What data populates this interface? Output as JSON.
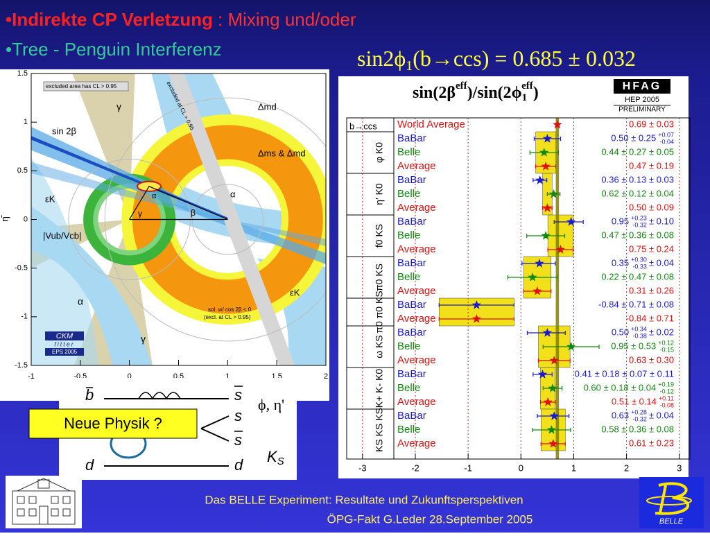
{
  "header": {
    "bullet1_bold": "•Indirekte CP Verletzung",
    "bullet1_rest": ": Mixing und/oder",
    "bullet2": "•Tree - Penguin Interferenz"
  },
  "formula": {
    "main": "sin2ϕ",
    "sub": "1",
    "rest": "(b→ccs) = 0.685 ± 0.032"
  },
  "ckm_plot": {
    "xlim": [
      -1,
      2
    ],
    "ylim": [
      -1.5,
      1.5
    ],
    "xticks": [
      -1,
      -0.5,
      0,
      0.5,
      1,
      1.5,
      2
    ],
    "yticks": [
      -1.5,
      -1,
      -0.5,
      0,
      0.5,
      1,
      1.5
    ],
    "ylabel": "η̄",
    "labels": {
      "excluded": "excluded area has CL > 0.95",
      "gamma_top": "γ",
      "dmd": "Δmd",
      "sin2b": "sin 2β",
      "dms": "Δms & Δmd",
      "epsk_left": "εK",
      "alpha_right": "α",
      "beta": "β",
      "alpha_small": "α",
      "gamma_small": "γ",
      "vub": "|Vub/Vcb|",
      "alpha_left": "α",
      "epsk_right": "εK",
      "sol1": "sol. w/ cos 2β < 0",
      "sol2": "(excl. at CL > 0.95)",
      "gamma_bottom": "γ",
      "diag": "excluded at CL > 0.95"
    },
    "logo": {
      "name": "CKM",
      "sub": "fitter",
      "event": "EPS 2005"
    }
  },
  "feynman": {
    "b": "b",
    "s_top": "s",
    "s_mid": "s",
    "s_low": "s",
    "d_left": "d",
    "d_right": "d",
    "meson": "ϕ, η'",
    "ks_main": "K",
    "ks_sub": "S"
  },
  "callout": "Neue Physik ?",
  "chart_data": {
    "type": "forest",
    "title": {
      "a": "sin(2β",
      "sup1": "eff",
      "b": ")/sin(2ϕ",
      "sub": "1",
      "sup2": "eff",
      "c": ")"
    },
    "badge": {
      "name": "HFAG",
      "event": "HEP 2005",
      "status": "PRELIMINARY"
    },
    "header_label": "b→ccs",
    "xlim": [
      -3.3,
      3.2
    ],
    "xticks": [
      -3,
      -2,
      -1,
      0,
      1,
      2,
      3
    ],
    "grid": true,
    "name_colors": {
      "World Average": "#dd1111",
      "BaBar": "#1a1acc",
      "Belle": "#118811",
      "Average": "#dd1111"
    },
    "box_color": "#f2e01a",
    "band_color": "#808000",
    "world_average": {
      "name": "World Average",
      "value": 0.69,
      "err_lo": 0.03,
      "err_hi": 0.03,
      "label": "0.69 ± 0.03"
    },
    "groups": [
      {
        "label": "φ K0",
        "rows": [
          {
            "name": "BaBar",
            "value": 0.5,
            "err_lo": 0.25,
            "err_hi": 0.25,
            "label": "0.50 ± 0.25",
            "up": "+0.07",
            "down": "-0.04"
          },
          {
            "name": "Belle",
            "value": 0.44,
            "err_lo": 0.27,
            "err_hi": 0.27,
            "label": "0.44 ± 0.27 ± 0.05"
          },
          {
            "name": "Average",
            "value": 0.47,
            "err_lo": 0.19,
            "err_hi": 0.19,
            "label": "0.47 ± 0.19"
          }
        ]
      },
      {
        "label": "η′ K0",
        "rows": [
          {
            "name": "BaBar",
            "value": 0.36,
            "err_lo": 0.13,
            "err_hi": 0.13,
            "label": "0.36 ± 0.13 ± 0.03"
          },
          {
            "name": "Belle",
            "value": 0.62,
            "err_lo": 0.12,
            "err_hi": 0.12,
            "label": "0.62 ± 0.12 ± 0.04"
          },
          {
            "name": "Average",
            "value": 0.5,
            "err_lo": 0.09,
            "err_hi": 0.09,
            "label": "0.50 ± 0.09"
          }
        ]
      },
      {
        "label": "f0 KS",
        "rows": [
          {
            "name": "BaBar",
            "value": 0.95,
            "err_lo": 0.32,
            "err_hi": 0.23,
            "label": "0.95",
            "up": "+0.23",
            "down": "-0.32",
            "tail": "± 0.10"
          },
          {
            "name": "Belle",
            "value": 0.47,
            "err_lo": 0.36,
            "err_hi": 0.36,
            "label": "0.47 ± 0.36 ± 0.08"
          },
          {
            "name": "Average",
            "value": 0.75,
            "err_lo": 0.24,
            "err_hi": 0.24,
            "label": "0.75 ± 0.24"
          }
        ]
      },
      {
        "label": "π0 KS",
        "rows": [
          {
            "name": "BaBar",
            "value": 0.35,
            "err_lo": 0.33,
            "err_hi": 0.3,
            "label": "0.35",
            "up": "+0.30",
            "down": "-0.33",
            "tail": "± 0.04"
          },
          {
            "name": "Belle",
            "value": 0.22,
            "err_lo": 0.47,
            "err_hi": 0.47,
            "label": "0.22 ± 0.47 ± 0.08"
          },
          {
            "name": "Average",
            "value": 0.31,
            "err_lo": 0.26,
            "err_hi": 0.26,
            "label": "0.31 ± 0.26"
          }
        ]
      },
      {
        "label": "π0 π0 KS",
        "rows": [
          {
            "name": "BaBar",
            "value": -0.84,
            "err_lo": 0.71,
            "err_hi": 0.71,
            "label": "-0.84 ± 0.71 ± 0.08"
          },
          {
            "name": "Average",
            "value": -0.84,
            "err_lo": 0.71,
            "err_hi": 0.71,
            "label": "-0.84 ± 0.71"
          }
        ]
      },
      {
        "label": "ω KS",
        "rows": [
          {
            "name": "BaBar",
            "value": 0.5,
            "err_lo": 0.38,
            "err_hi": 0.34,
            "label": "0.50",
            "up": "+0.34",
            "down": "-0.38",
            "tail": "± 0.02"
          },
          {
            "name": "Belle",
            "value": 0.95,
            "err_lo": 0.53,
            "err_hi": 0.53,
            "label": "0.95 ± 0.53",
            "up": "+0.12",
            "down": "-0.15"
          },
          {
            "name": "Average",
            "value": 0.63,
            "err_lo": 0.3,
            "err_hi": 0.3,
            "label": "0.63 ± 0.30"
          }
        ]
      },
      {
        "label": "K+ K- K0",
        "rows": [
          {
            "name": "BaBar",
            "value": 0.41,
            "err_lo": 0.18,
            "err_hi": 0.18,
            "label": "0.41 ± 0.18 ± 0.07 ± 0.11"
          },
          {
            "name": "Belle",
            "value": 0.6,
            "err_lo": 0.18,
            "err_hi": 0.18,
            "label": "0.60 ± 0.18 ± 0.04",
            "up": "+0.19",
            "down": "-0.12"
          },
          {
            "name": "Average",
            "value": 0.51,
            "err_lo": 0.14,
            "err_hi": 0.14,
            "label": "0.51 ± 0.14",
            "up": "+0.11",
            "down": "-0.08"
          }
        ]
      },
      {
        "label": "KS KS KS",
        "rows": [
          {
            "name": "BaBar",
            "value": 0.63,
            "err_lo": 0.32,
            "err_hi": 0.28,
            "label": "0.63",
            "up": "+0.28",
            "down": "-0.32",
            "tail": "± 0.04"
          },
          {
            "name": "Belle",
            "value": 0.58,
            "err_lo": 0.36,
            "err_hi": 0.36,
            "label": "0.58 ± 0.36 ± 0.08"
          },
          {
            "name": "Average",
            "value": 0.61,
            "err_lo": 0.23,
            "err_hi": 0.23,
            "label": "0.61 ± 0.23"
          }
        ]
      }
    ]
  },
  "footer": {
    "line1": "Das BELLE Experiment: Resultate und Zukunftsperspektiven",
    "line2": "ÖPG-Fakt  G.Leder  28.September 2005",
    "logo": "BELLE"
  }
}
